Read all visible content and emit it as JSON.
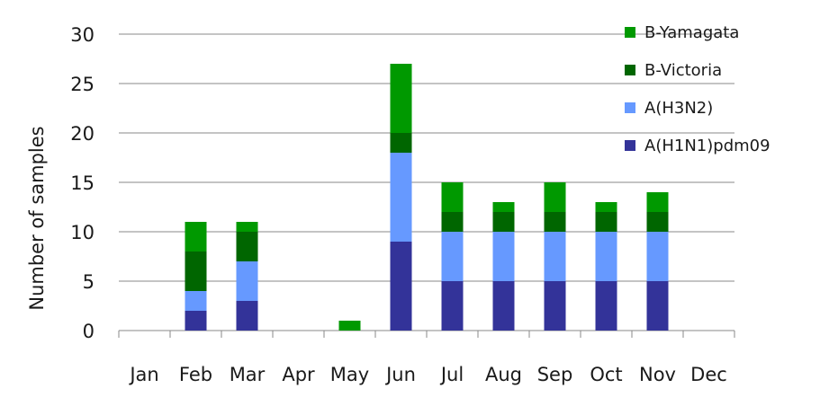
{
  "chart_data": {
    "type": "bar",
    "stacked": true,
    "title": "",
    "xlabel": "",
    "ylabel": "Number of samples",
    "ylim": [
      0,
      30
    ],
    "yticks": [
      0,
      5,
      10,
      15,
      20,
      25,
      30
    ],
    "grid": "horizontal",
    "legend_position": "right",
    "categories": [
      "Jan",
      "Feb",
      "Mar",
      "Apr",
      "May",
      "Jun",
      "Jul",
      "Aug",
      "Sep",
      "Oct",
      "Nov",
      "Dec"
    ],
    "series": [
      {
        "name": "A(H1N1)pdm09",
        "color": "#333399",
        "values": [
          0,
          2,
          3,
          0,
          0,
          9,
          5,
          5,
          5,
          5,
          5,
          0
        ]
      },
      {
        "name": "A(H3N2)",
        "color": "#6699ff",
        "values": [
          0,
          2,
          4,
          0,
          0,
          9,
          5,
          5,
          5,
          5,
          5,
          0
        ]
      },
      {
        "name": "B-Victoria",
        "color": "#006600",
        "values": [
          0,
          4,
          3,
          0,
          0,
          2,
          2,
          2,
          2,
          2,
          2,
          0
        ]
      },
      {
        "name": "B-Yamagata",
        "color": "#009900",
        "values": [
          0,
          3,
          1,
          0,
          1,
          7,
          3,
          1,
          3,
          1,
          2,
          0
        ]
      }
    ]
  }
}
